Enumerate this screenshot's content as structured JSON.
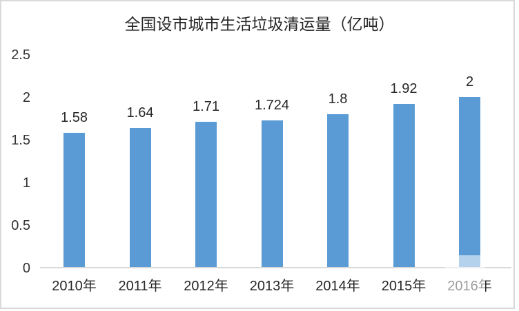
{
  "chart_data": {
    "type": "bar",
    "title": "全国设市城市生活垃圾清运量（亿吨）",
    "categories": [
      "2010年",
      "2011年",
      "2012年",
      "2013年",
      "2014年",
      "2015年",
      "2016年"
    ],
    "values": [
      1.58,
      1.64,
      1.71,
      1.724,
      1.8,
      1.92,
      2
    ],
    "value_labels": [
      "1.58",
      "1.64",
      "1.71",
      "1.724",
      "1.8",
      "1.92",
      "2"
    ],
    "xlabel": "",
    "ylabel": "",
    "ylim": [
      0,
      2.5
    ],
    "ytick_labels": [
      "0",
      "0.5",
      "1",
      "1.5",
      "2",
      "2.5"
    ],
    "grid": false,
    "legend": "none",
    "colors": {
      "bar": "#5B9BD5",
      "axis_line": "#D9D9D9",
      "frame_border": "#D9D9D9",
      "text": "#262626",
      "axis_text": "#333333",
      "watermark_fade": "rgba(255,255,255,0.55)"
    }
  }
}
